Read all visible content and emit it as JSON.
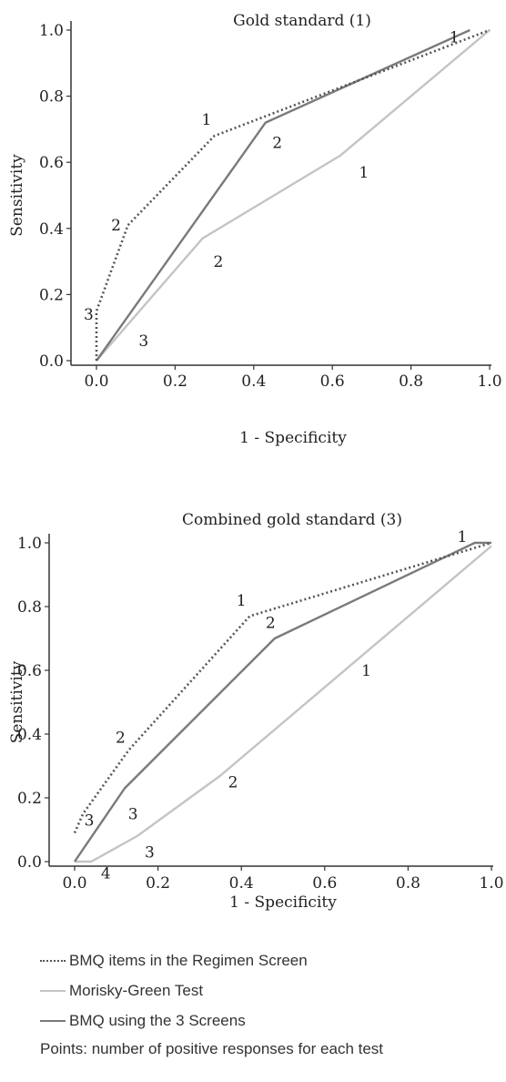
{
  "chart_data": [
    {
      "type": "line",
      "title": "Gold standard (1)",
      "xlabel": "1 - Specificity",
      "ylabel": "Sensitivity",
      "xlim": [
        0,
        1
      ],
      "ylim": [
        0,
        1
      ],
      "xticks": [
        "0.0",
        "0.2",
        "0.4",
        "0.6",
        "0.8",
        "1.0"
      ],
      "yticks": [
        "0.0",
        "0.2",
        "0.4",
        "0.6",
        "0.8",
        "1.0"
      ],
      "grid": false,
      "series": [
        {
          "name": "BMQ items in the Regimen Screen",
          "color": "#555555",
          "style": "dotted",
          "points": [
            [
              0,
              0
            ],
            [
              0,
              0.15
            ],
            [
              0.08,
              0.41
            ],
            [
              0.3,
              0.68
            ],
            [
              1,
              1
            ]
          ],
          "labels": [
            {
              "text": "3",
              "x": -0.02,
              "y": 0.14
            },
            {
              "text": "2",
              "x": 0.05,
              "y": 0.41
            },
            {
              "text": "1",
              "x": 0.28,
              "y": 0.73
            }
          ]
        },
        {
          "name": "Morisky-Green Test",
          "color": "#c4c4c4",
          "style": "solid",
          "points": [
            [
              0,
              0
            ],
            [
              0.27,
              0.37
            ],
            [
              0.62,
              0.62
            ],
            [
              1,
              1
            ]
          ],
          "labels": [
            {
              "text": "3",
              "x": 0.12,
              "y": 0.06
            },
            {
              "text": "2",
              "x": 0.31,
              "y": 0.3
            },
            {
              "text": "1",
              "x": 0.68,
              "y": 0.57
            }
          ]
        },
        {
          "name": "BMQ using the 3 Screens",
          "color": "#7a7a7a",
          "style": "solid",
          "points": [
            [
              0,
              0
            ],
            [
              0.43,
              0.72
            ],
            [
              0.95,
              1
            ]
          ],
          "labels": [
            {
              "text": "2",
              "x": 0.46,
              "y": 0.66
            },
            {
              "text": "1",
              "x": 0.91,
              "y": 0.98
            }
          ]
        }
      ]
    },
    {
      "type": "line",
      "title": "Combined gold standard (3)",
      "xlabel": "1 - Specificity",
      "ylabel": "Sensitivity",
      "xlim": [
        0,
        1
      ],
      "ylim": [
        0,
        1
      ],
      "xticks": [
        "0.0",
        "0.2",
        "0.4",
        "0.6",
        "0.8",
        "1.0"
      ],
      "yticks": [
        "0.0",
        "0.2",
        "0.4",
        "0.6",
        "0.8",
        "1.0"
      ],
      "grid": false,
      "series": [
        {
          "name": "BMQ items in the Regimen Screen",
          "color": "#555555",
          "style": "dotted",
          "points": [
            [
              0,
              0.09
            ],
            [
              0.02,
              0.15
            ],
            [
              0.13,
              0.35
            ],
            [
              0.42,
              0.77
            ],
            [
              1,
              1
            ]
          ],
          "labels": [
            {
              "text": "3",
              "x": 0.035,
              "y": 0.13
            },
            {
              "text": "2",
              "x": 0.11,
              "y": 0.39
            },
            {
              "text": "1",
              "x": 0.4,
              "y": 0.82
            }
          ]
        },
        {
          "name": "Morisky-Green Test",
          "color": "#c4c4c4",
          "style": "solid",
          "points": [
            [
              0,
              0
            ],
            [
              0.04,
              0
            ],
            [
              0.15,
              0.08
            ],
            [
              0.35,
              0.27
            ],
            [
              1,
              0.99
            ]
          ],
          "labels": [
            {
              "text": "4",
              "x": 0.075,
              "y": -0.035
            },
            {
              "text": "3",
              "x": 0.18,
              "y": 0.03
            },
            {
              "text": "2",
              "x": 0.38,
              "y": 0.25
            },
            {
              "text": "1",
              "x": 0.7,
              "y": 0.6
            }
          ]
        },
        {
          "name": "BMQ using the 3 Screens",
          "color": "#7a7a7a",
          "style": "solid",
          "points": [
            [
              0,
              0
            ],
            [
              0.12,
              0.23
            ],
            [
              0.48,
              0.7
            ],
            [
              0.96,
              1
            ],
            [
              1,
              1
            ]
          ],
          "labels": [
            {
              "text": "3",
              "x": 0.14,
              "y": 0.15
            },
            {
              "text": "2",
              "x": 0.47,
              "y": 0.75
            },
            {
              "text": "1",
              "x": 0.93,
              "y": 1.02
            }
          ]
        }
      ]
    }
  ],
  "legend": {
    "items": [
      {
        "label": "BMQ items in the Regimen Screen",
        "color": "#555555",
        "style": "dotted"
      },
      {
        "label": "Morisky-Green Test",
        "color": "#c4c4c4",
        "style": "solid"
      },
      {
        "label": "BMQ using the 3 Screens",
        "color": "#7a7a7a",
        "style": "solid"
      }
    ],
    "note": "Points: number of positive responses for each test"
  }
}
